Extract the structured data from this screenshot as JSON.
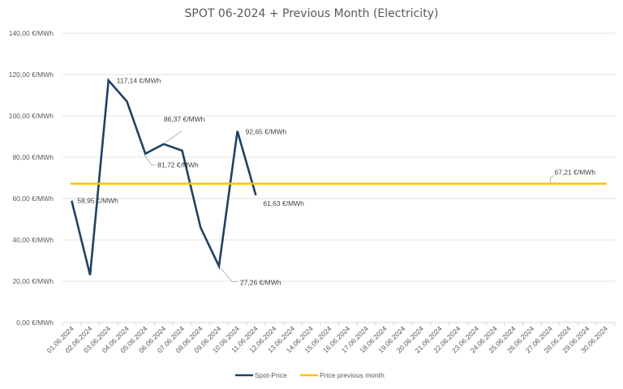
{
  "chart_data": {
    "type": "line",
    "title": "SPOT 06-2024 + Previous Month (Electricity)",
    "xlabel": "",
    "ylabel": "",
    "ylim": [
      0,
      140
    ],
    "ytick_step": 20,
    "ytick_labels": [
      "0,00 €/MWh",
      "20,00 €/MWh",
      "40,00 €/MWh",
      "60,00 €/MWh",
      "80,00 €/MWh",
      "100,00 €/MWh",
      "120,00 €/MWh",
      "140,00 €/MWh"
    ],
    "grid": true,
    "categories": [
      "01.06.2024",
      "02.06.2024",
      "03.06.2024",
      "04.06.2024",
      "05.06.2024",
      "06.06.2024",
      "07.06.2024",
      "08.06.2024",
      "09.06.2024",
      "10.06.2024",
      "11.06.2024",
      "12.06.2024",
      "13.06.2024",
      "14.06.2024",
      "15.06.2024",
      "16.06.2024",
      "17.06.2024",
      "18.06.2024",
      "19.06.2024",
      "20.06.2024",
      "21.06.2024",
      "22.06.2024",
      "23.06.2024",
      "24.06.2024",
      "25.06.2024",
      "26.06.2024",
      "27.06.2024",
      "28.06.2024",
      "29.06.2024",
      "30.06.2024"
    ],
    "series": [
      {
        "name": "Spot-Price",
        "color": "#1F4263",
        "values": [
          58.95,
          23.0,
          117.14,
          107.0,
          81.72,
          86.37,
          83.2,
          46.0,
          27.26,
          92.65,
          61.63,
          null,
          null,
          null,
          null,
          null,
          null,
          null,
          null,
          null,
          null,
          null,
          null,
          null,
          null,
          null,
          null,
          null,
          null,
          null
        ],
        "data_labels": [
          {
            "index": 0,
            "text": "58,95 €/MWh"
          },
          {
            "index": 2,
            "text": "117,14 €/MWh"
          },
          {
            "index": 4,
            "text": "81,72 €/MWh"
          },
          {
            "index": 5,
            "text": "86,37 €/MWh"
          },
          {
            "index": 8,
            "text": "27,26 €/MWh"
          },
          {
            "index": 9,
            "text": "92,65 €/MWh"
          },
          {
            "index": 10,
            "text": "61,63 €/MWh"
          }
        ]
      },
      {
        "name": "Price previous month",
        "color": "#FFC000",
        "values": [
          67.21,
          67.21,
          67.21,
          67.21,
          67.21,
          67.21,
          67.21,
          67.21,
          67.21,
          67.21,
          67.21,
          67.21,
          67.21,
          67.21,
          67.21,
          67.21,
          67.21,
          67.21,
          67.21,
          67.21,
          67.21,
          67.21,
          67.21,
          67.21,
          67.21,
          67.21,
          67.21,
          67.21,
          67.21,
          67.21
        ],
        "data_labels": [
          {
            "index": 26,
            "text": "67,21 €/MWh"
          }
        ]
      }
    ],
    "legend": {
      "position": "bottom",
      "entries": [
        "Spot-Price",
        "Price previous month"
      ]
    }
  }
}
